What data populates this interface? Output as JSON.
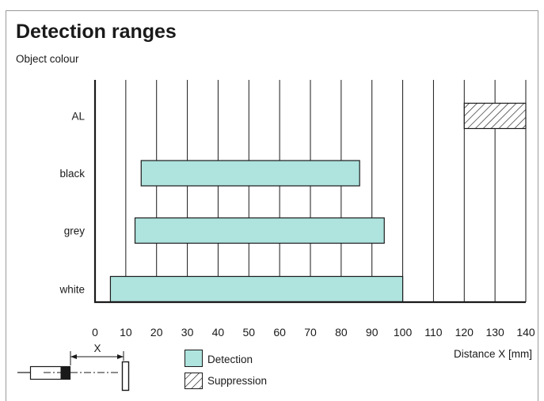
{
  "chart_data": {
    "type": "bar",
    "orientation": "horizontal",
    "title": "Detection ranges",
    "ylabel": "Object colour",
    "xlabel": "Distance X [mm]",
    "xlim": [
      0,
      140
    ],
    "xticks": [
      0,
      10,
      20,
      30,
      40,
      50,
      60,
      70,
      80,
      90,
      100,
      110,
      120,
      130,
      140
    ],
    "categories": [
      "AL",
      "black",
      "grey",
      "white"
    ],
    "series": [
      {
        "name": "Detection",
        "ranges": [
          null,
          [
            15,
            86
          ],
          [
            13,
            94
          ],
          [
            5,
            100
          ]
        ]
      },
      {
        "name": "Suppression",
        "ranges": [
          [
            120,
            140
          ],
          null,
          null,
          null
        ]
      }
    ],
    "grid": true,
    "legend": "bottom",
    "colors": {
      "detection": "#aee3de",
      "suppression": "hatched",
      "stroke": "#1a1a1a"
    }
  },
  "sketch": {
    "dimension_label": "X"
  }
}
